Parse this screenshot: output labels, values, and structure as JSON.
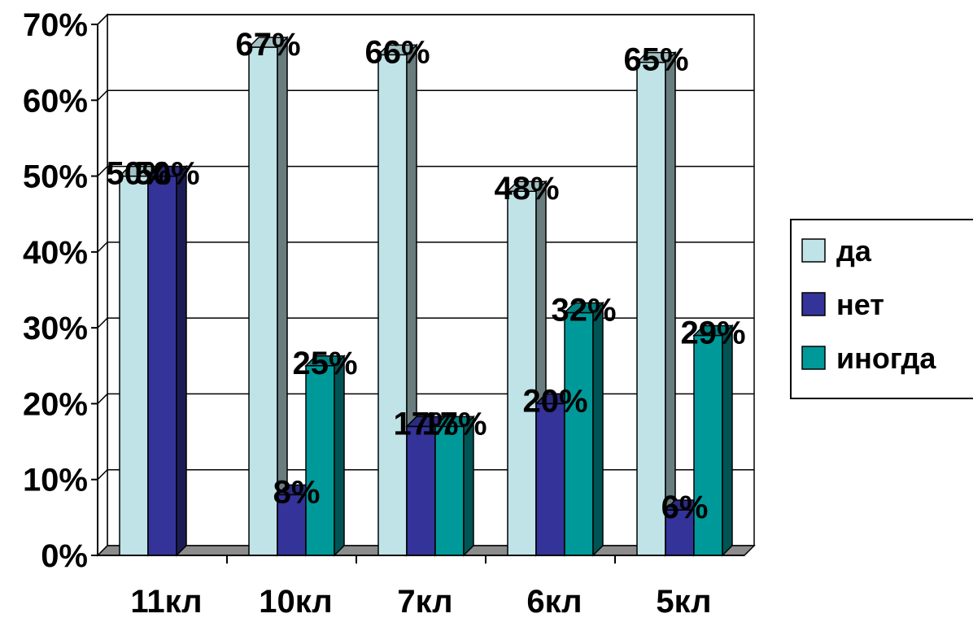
{
  "chart_data": {
    "type": "bar",
    "categories": [
      "11кл",
      "10кл",
      "7кл",
      "6кл",
      "5кл"
    ],
    "series": [
      {
        "name": "да",
        "values": [
          50,
          67,
          66,
          48,
          65
        ],
        "labels": [
          "50%",
          "67%",
          "66%",
          "48%",
          "65%"
        ],
        "color": "#bfe3e6"
      },
      {
        "name": "нет",
        "values": [
          50,
          8,
          17,
          20,
          6
        ],
        "labels": [
          "50%",
          "8%",
          "17%",
          "20%",
          "6%"
        ],
        "color": "#333399"
      },
      {
        "name": "иногда",
        "values": [
          null,
          25,
          17,
          32,
          29
        ],
        "labels": [
          null,
          "25%",
          "17%",
          "32%",
          "29%"
        ],
        "color": "#009999"
      }
    ],
    "yticks": [
      "0%",
      "10%",
      "20%",
      "30%",
      "40%",
      "50%",
      "60%",
      "70%"
    ],
    "ylim": [
      0,
      70
    ],
    "grid": true,
    "legend_position": "right"
  }
}
